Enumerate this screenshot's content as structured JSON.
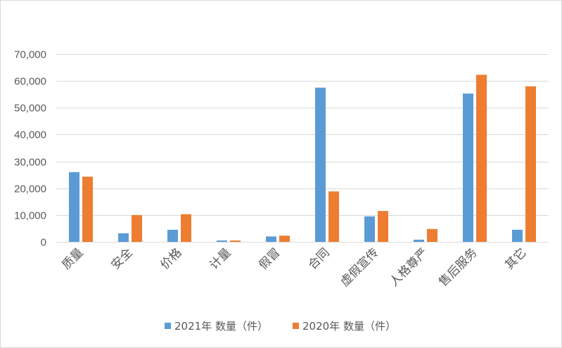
{
  "chart_data": {
    "type": "bar",
    "title": "",
    "xlabel": "",
    "ylabel": "",
    "ylim": [
      0,
      70000
    ],
    "y_ticks": [
      "0",
      "10,000",
      "20,000",
      "30,000",
      "40,000",
      "50,000",
      "60,000",
      "70,000"
    ],
    "y_tick_values": [
      0,
      10000,
      20000,
      30000,
      40000,
      50000,
      60000,
      70000
    ],
    "grid": true,
    "legend_position": "bottom",
    "categories": [
      "质量",
      "安全",
      "价格",
      "计量",
      "假冒",
      "合同",
      "虚假宣传",
      "人格尊严",
      "售后服务",
      "其它"
    ],
    "series": [
      {
        "name": "2021年 数量（件）",
        "color": "#5b9bd5",
        "values": [
          26000,
          3200,
          4500,
          500,
          2000,
          57500,
          9500,
          800,
          55300,
          4500
        ]
      },
      {
        "name": "2020年 数量（件）",
        "color": "#ed7d31",
        "values": [
          24300,
          10000,
          10300,
          500,
          2300,
          18800,
          11500,
          4800,
          62300,
          58000
        ]
      }
    ]
  }
}
